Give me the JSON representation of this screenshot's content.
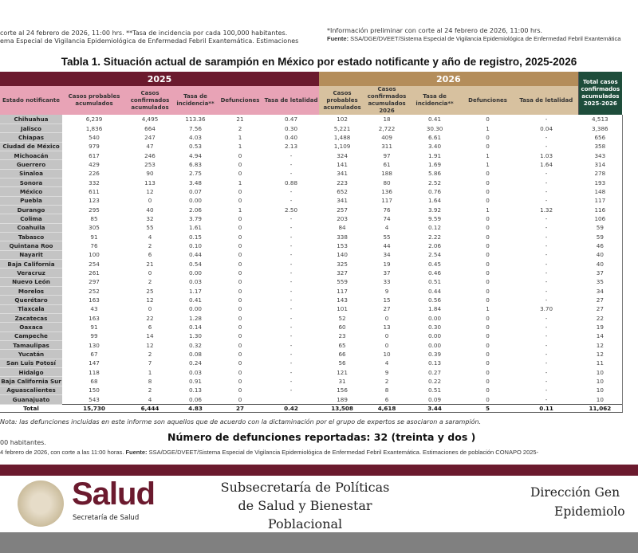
{
  "top_notes": {
    "left_line1": "corte al 24 febrero de 2026, 11:00 hrs. **Tasa de incidencia por cada 100,000 habitantes.",
    "left_line2": "ema Especial de Vigilancia Epidemiológica de Enfermedad Febril Exantemática. Estimaciones",
    "right_line1": "*Información preliminar con corte al 24 febrero de 2026, 11:00 hrs.",
    "right_line2_label": "Fuente:",
    "right_line2": " SSA/DGE/DVEET/Sistema Especial de Vigilancia Epidemiológica de Enfermedad Febril Exantemática"
  },
  "title": "Tabla 1. Situación actual de sarampión en México por estado notificante y año de registro, 2025-2026",
  "table": {
    "year_2025": "2025",
    "year_2026": "2026",
    "state_header": "Estado notificante",
    "headers_2025": [
      "Casos probables acumulados",
      "Casos confirmados acumulados",
      "Tasa de incidencia**",
      "Defunciones",
      "Tasa de letalidad"
    ],
    "headers_2026": [
      "Casos probables acumulados",
      "Casos confirmados acumulados 2026",
      "Tasa de incidencia**",
      "Defunciones",
      "Tasa de letalidad"
    ],
    "total_header": "Total casos confirmados acumulados 2025-2026",
    "rows": [
      [
        "Chihuahua",
        "6,239",
        "4,495",
        "113.36",
        "21",
        "0.47",
        "102",
        "18",
        "0.41",
        "0",
        "-",
        "4,513"
      ],
      [
        "Jalisco",
        "1,836",
        "664",
        "7.56",
        "2",
        "0.30",
        "5,221",
        "2,722",
        "30.30",
        "1",
        "0.04",
        "3,386"
      ],
      [
        "Chiapas",
        "540",
        "247",
        "4.03",
        "1",
        "0.40",
        "1,488",
        "409",
        "6.61",
        "0",
        "-",
        "656"
      ],
      [
        "Ciudad de México",
        "979",
        "47",
        "0.53",
        "1",
        "2.13",
        "1,109",
        "311",
        "3.40",
        "0",
        "-",
        "358"
      ],
      [
        "Michoacán",
        "617",
        "246",
        "4.94",
        "0",
        "-",
        "324",
        "97",
        "1.91",
        "1",
        "1.03",
        "343"
      ],
      [
        "Guerrero",
        "429",
        "253",
        "6.83",
        "0",
        "-",
        "141",
        "61",
        "1.69",
        "1",
        "1.64",
        "314"
      ],
      [
        "Sinaloa",
        "226",
        "90",
        "2.75",
        "0",
        "-",
        "341",
        "188",
        "5.86",
        "0",
        "-",
        "278"
      ],
      [
        "Sonora",
        "332",
        "113",
        "3.48",
        "1",
        "0.88",
        "223",
        "80",
        "2.52",
        "0",
        "-",
        "193"
      ],
      [
        "México",
        "611",
        "12",
        "0.07",
        "0",
        "-",
        "652",
        "136",
        "0.76",
        "0",
        "-",
        "148"
      ],
      [
        "Puebla",
        "123",
        "0",
        "0.00",
        "0",
        "-",
        "341",
        "117",
        "1.64",
        "0",
        "-",
        "117"
      ],
      [
        "Durango",
        "295",
        "40",
        "2.06",
        "1",
        "2.50",
        "257",
        "76",
        "3.92",
        "1",
        "1.32",
        "116"
      ],
      [
        "Colima",
        "85",
        "32",
        "3.79",
        "0",
        "-",
        "203",
        "74",
        "9.59",
        "0",
        "-",
        "106"
      ],
      [
        "Coahuila",
        "305",
        "55",
        "1.61",
        "0",
        "-",
        "84",
        "4",
        "0.12",
        "0",
        "-",
        "59"
      ],
      [
        "Tabasco",
        "91",
        "4",
        "0.15",
        "0",
        "-",
        "338",
        "55",
        "2.22",
        "0",
        "-",
        "59"
      ],
      [
        "Quintana Roo",
        "76",
        "2",
        "0.10",
        "0",
        "-",
        "153",
        "44",
        "2.06",
        "0",
        "-",
        "46"
      ],
      [
        "Nayarit",
        "100",
        "6",
        "0.44",
        "0",
        "-",
        "140",
        "34",
        "2.54",
        "0",
        "-",
        "40"
      ],
      [
        "Baja California",
        "254",
        "21",
        "0.54",
        "0",
        "-",
        "325",
        "19",
        "0.45",
        "0",
        "-",
        "40"
      ],
      [
        "Veracruz",
        "261",
        "0",
        "0.00",
        "0",
        "-",
        "327",
        "37",
        "0.46",
        "0",
        "-",
        "37"
      ],
      [
        "Nuevo León",
        "297",
        "2",
        "0.03",
        "0",
        "-",
        "559",
        "33",
        "0.51",
        "0",
        "-",
        "35"
      ],
      [
        "Morelos",
        "252",
        "25",
        "1.17",
        "0",
        "-",
        "117",
        "9",
        "0.44",
        "0",
        "-",
        "34"
      ],
      [
        "Querétaro",
        "163",
        "12",
        "0.41",
        "0",
        "-",
        "143",
        "15",
        "0.56",
        "0",
        "-",
        "27"
      ],
      [
        "Tlaxcala",
        "43",
        "0",
        "0.00",
        "0",
        "-",
        "101",
        "27",
        "1.84",
        "1",
        "3.70",
        "27"
      ],
      [
        "Zacatecas",
        "163",
        "22",
        "1.28",
        "0",
        "-",
        "52",
        "0",
        "0.00",
        "0",
        "-",
        "22"
      ],
      [
        "Oaxaca",
        "91",
        "6",
        "0.14",
        "0",
        "-",
        "60",
        "13",
        "0.30",
        "0",
        "-",
        "19"
      ],
      [
        "Campeche",
        "99",
        "14",
        "1.30",
        "0",
        "-",
        "23",
        "0",
        "0.00",
        "0",
        "-",
        "14"
      ],
      [
        "Tamaulipas",
        "130",
        "12",
        "0.32",
        "0",
        "-",
        "65",
        "0",
        "0.00",
        "0",
        "-",
        "12"
      ],
      [
        "Yucatán",
        "67",
        "2",
        "0.08",
        "0",
        "-",
        "66",
        "10",
        "0.39",
        "0",
        "-",
        "12"
      ],
      [
        "San Luis Potosí",
        "147",
        "7",
        "0.24",
        "0",
        "-",
        "56",
        "4",
        "0.13",
        "0",
        "-",
        "11"
      ],
      [
        "Hidalgo",
        "118",
        "1",
        "0.03",
        "0",
        "-",
        "121",
        "9",
        "0.27",
        "0",
        "-",
        "10"
      ],
      [
        "Baja California Sur",
        "68",
        "8",
        "0.91",
        "0",
        "-",
        "31",
        "2",
        "0.22",
        "0",
        "-",
        "10"
      ],
      [
        "Aguascalientes",
        "150",
        "2",
        "0.13",
        "0",
        "-",
        "156",
        "8",
        "0.51",
        "0",
        "-",
        "10"
      ],
      [
        "Guanajuato",
        "543",
        "4",
        "0.06",
        "0",
        "",
        "189",
        "6",
        "0.09",
        "0",
        "-",
        "10"
      ]
    ],
    "total": [
      "Total",
      "15,730",
      "6,444",
      "4.83",
      "27",
      "0.42",
      "13,508",
      "4,618",
      "3.44",
      "5",
      "0.11",
      "11,062"
    ]
  },
  "nota": "Nota: las defunciones incluidas en este informe son aquellos que de acuerdo con la dictaminación por el grupo de expertos se asociaron a sarampión.",
  "deaths_reported": "Número de defunciones reportadas: 32 (treinta y dos )",
  "bottom_notes": {
    "line1": "00 habitantes.",
    "line2_a": "4 febrero de 2026, con corte a las 11:00 horas.  ",
    "line2_label": "Fuente:",
    "line2_b": " SSA/DGE/DVEET/Sistema Especial de Vigilancia Epidemiológica de Enfermedad Febril Exantemática. Estimaciones de población CONAPO 2025-"
  },
  "footer": {
    "logo_text": "Salud",
    "logo_sub": "Secretaría de Salud",
    "subsecretaria": [
      "Subsecretaría de Políticas",
      "de Salud y Bienestar",
      "Poblacional"
    ],
    "direccion": [
      "Dirección Gen",
      "Epidemiolo"
    ]
  },
  "colors": {
    "maroon": "#6b1a2e",
    "gold": "#b48d5a",
    "pink": "#e8a3b6",
    "green": "#1e4d3b"
  }
}
